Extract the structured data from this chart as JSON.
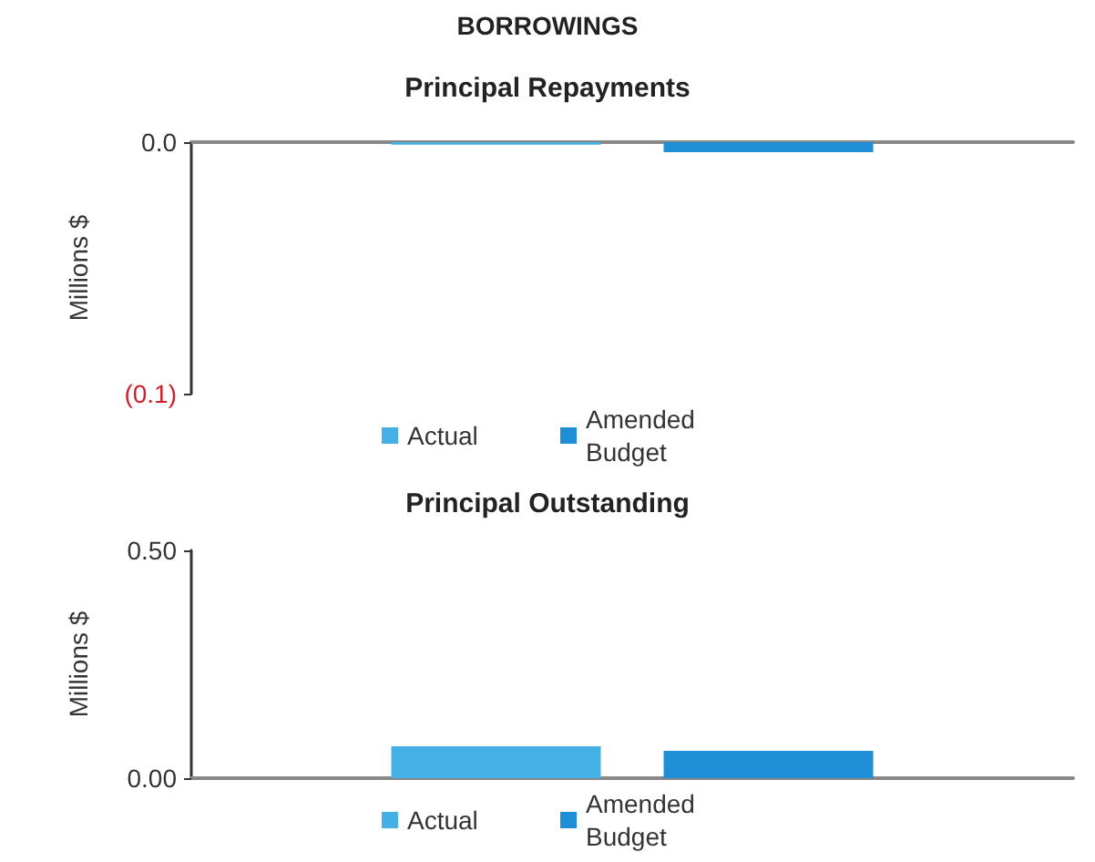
{
  "chart_data": [
    {
      "type": "bar",
      "title": "BORROWINGS",
      "subtitle": "Principal Repayments",
      "ylabel": "Millions $",
      "categories": [
        null
      ],
      "series": [
        {
          "name": "Actual",
          "color": "#45b0e6",
          "values": [
            -0.001
          ]
        },
        {
          "name": "Amended Budget",
          "color": "#1e8fd6",
          "values": [
            -0.004
          ]
        }
      ],
      "ylim": [
        -0.1,
        0
      ],
      "yticks": [
        {
          "value": 0,
          "label": "0.0"
        },
        {
          "value": -0.1,
          "label": "(0.1)"
        }
      ],
      "grid": false,
      "legend": "bottom"
    },
    {
      "type": "bar",
      "title": "Principal Outstanding",
      "ylabel": "Millions $",
      "categories": [
        null
      ],
      "series": [
        {
          "name": "Actual",
          "color": "#45b0e6",
          "values": [
            0.07
          ]
        },
        {
          "name": "Amended Budget",
          "color": "#1e8fd6",
          "values": [
            0.06
          ]
        }
      ],
      "ylim": [
        0,
        0.5
      ],
      "yticks": [
        {
          "value": 0,
          "label": "0.00"
        },
        {
          "value": 0.5,
          "label": "0.50"
        }
      ],
      "grid": false,
      "legend": "bottom"
    }
  ]
}
